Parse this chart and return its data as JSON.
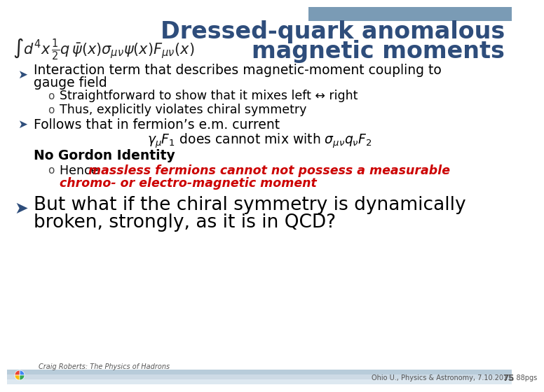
{
  "title_line1": "Dressed-quark anomalous",
  "title_line2": "magnetic moments",
  "title_color": "#2E4D7B",
  "title_fontsize": 24,
  "bg_color": "#FFFFFF",
  "header_bar_color": "#7A9BB5",
  "bullet_color": "#2E4D7B",
  "footer_left": "Craig Roberts: The Physics of Hadrons",
  "footer_right": "Ohio U., Physics & Astronomy, 7.10.2011, 88pgs",
  "footer_page": "75",
  "footer_fontsize": 7,
  "bottom_bar_colors": [
    "#B8CCDA",
    "#CDDAE5",
    "#DDE8F0"
  ],
  "google_colors": [
    "#4285F4",
    "#EA4335",
    "#FBBC05",
    "#34A853"
  ]
}
